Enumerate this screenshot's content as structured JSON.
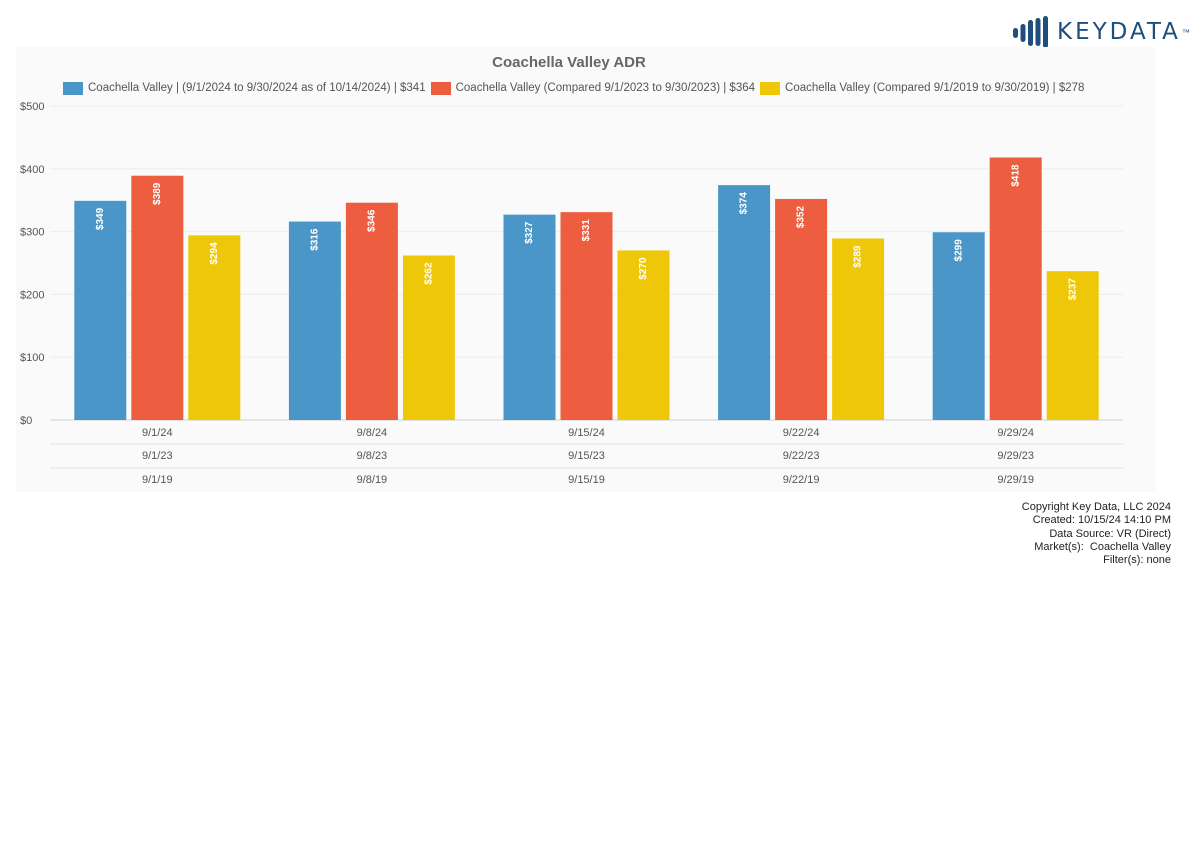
{
  "brand": {
    "name": "KEYDATA",
    "trademark": "™",
    "color": "#1d4e7e"
  },
  "chart_data": {
    "type": "bar",
    "title": "Coachella Valley ADR",
    "xlabel": "",
    "ylabel": "",
    "ylim": [
      0,
      500
    ],
    "y_ticks": [
      0,
      100,
      200,
      300,
      400,
      500
    ],
    "y_tick_labels": [
      "$0",
      "$100",
      "$200",
      "$300",
      "$400",
      "$500"
    ],
    "grid": true,
    "legend_position": "top",
    "categories": [
      [
        "9/1/24",
        "9/1/23",
        "9/1/19"
      ],
      [
        "9/8/24",
        "9/8/23",
        "9/8/19"
      ],
      [
        "9/15/24",
        "9/15/23",
        "9/15/19"
      ],
      [
        "9/22/24",
        "9/22/23",
        "9/22/19"
      ],
      [
        "9/29/24",
        "9/29/23",
        "9/29/19"
      ]
    ],
    "series": [
      {
        "name": "Coachella Valley | (9/1/2024 to 9/30/2024 as of 10/14/2024) | $341",
        "color": "#4a96c8",
        "values": [
          349,
          316,
          327,
          374,
          299
        ],
        "labels": [
          "$349",
          "$316",
          "$327",
          "$374",
          "$299"
        ]
      },
      {
        "name": "Coachella Valley (Compared 9/1/2023 to 9/30/2023) | $364",
        "color": "#ec5e3f",
        "values": [
          389,
          346,
          331,
          352,
          418
        ],
        "labels": [
          "$389",
          "$346",
          "$331",
          "$352",
          "$418"
        ]
      },
      {
        "name": "Coachella Valley (Compared 9/1/2019 to 9/30/2019) | $278",
        "color": "#eec808",
        "values": [
          294,
          262,
          270,
          289,
          237
        ],
        "labels": [
          "$294",
          "$262",
          "$270",
          "$289",
          "$237"
        ]
      }
    ]
  },
  "footer": {
    "copyright": "Copyright Key Data, LLC 2024",
    "created": "Created: 10/15/24 14:10 PM",
    "source": "Data Source: VR (Direct)",
    "markets": "Market(s):  Coachella Valley",
    "filters": "Filter(s): none"
  }
}
